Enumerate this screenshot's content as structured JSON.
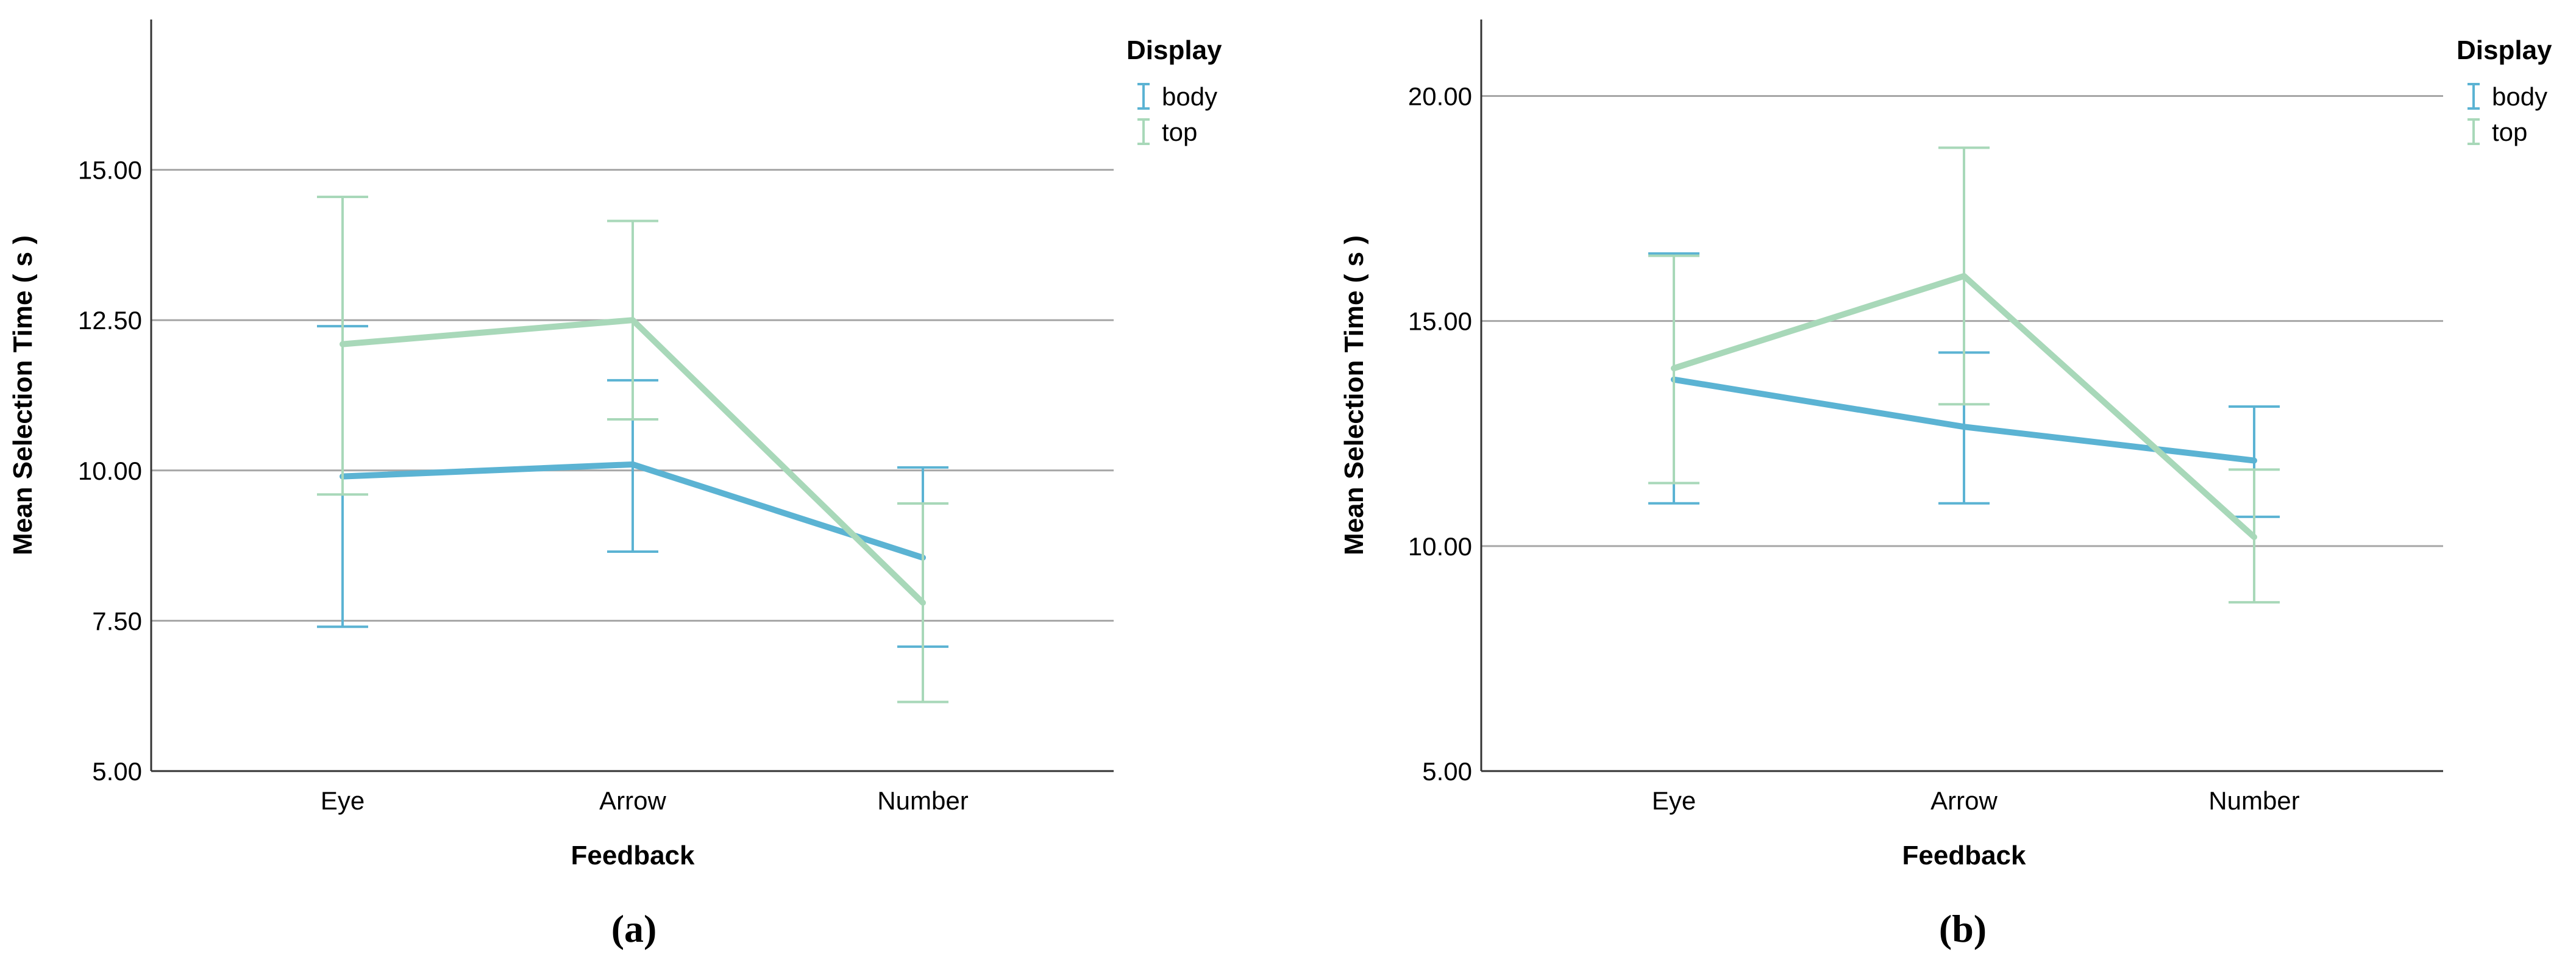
{
  "chart_data": [
    {
      "panel_label": "(a)",
      "panel_letter": "a",
      "type": "line",
      "xlabel": "Feedback",
      "ylabel": "Mean Selection Time ( s )",
      "categories": [
        "Eye",
        "Arrow",
        "Number"
      ],
      "ylim": [
        5,
        17.5
      ],
      "yticks": [
        5,
        7.5,
        10,
        12.5,
        15
      ],
      "ytick_labels": [
        "5.00",
        "7.50",
        "10.00",
        "12.50",
        "15.00"
      ],
      "grid": true,
      "legend": {
        "title": "Display",
        "position": "top-right"
      },
      "series": [
        {
          "name": "body",
          "color": "#5bb3d3",
          "values": [
            9.9,
            10.1,
            8.55
          ],
          "lower": [
            7.4,
            8.65,
            7.07
          ],
          "upper": [
            12.4,
            11.5,
            10.05
          ]
        },
        {
          "name": "top",
          "color": "#a8d8b9",
          "values": [
            12.1,
            12.5,
            7.8
          ],
          "lower": [
            9.6,
            10.85,
            6.15
          ],
          "upper": [
            14.55,
            14.15,
            9.45
          ]
        }
      ]
    },
    {
      "panel_label": "(b)",
      "panel_letter": "b",
      "type": "line",
      "xlabel": "Feedback",
      "ylabel": "Mean Selection Time ( s )",
      "categories": [
        "Eye",
        "Arrow",
        "Number"
      ],
      "ylim": [
        5,
        21.7
      ],
      "yticks": [
        5,
        10,
        15,
        20
      ],
      "ytick_labels": [
        "5.00",
        "10.00",
        "15.00",
        "20.00"
      ],
      "grid": true,
      "legend": {
        "title": "Display",
        "position": "top-right"
      },
      "series": [
        {
          "name": "body",
          "color": "#5bb3d3",
          "values": [
            13.7,
            12.65,
            11.9
          ],
          "lower": [
            10.95,
            10.95,
            10.65
          ],
          "upper": [
            16.5,
            14.3,
            13.1
          ]
        },
        {
          "name": "top",
          "color": "#a8d8b9",
          "values": [
            13.95,
            16.0,
            10.2
          ],
          "lower": [
            11.4,
            13.15,
            8.75
          ],
          "upper": [
            16.45,
            18.85,
            11.7
          ]
        }
      ]
    }
  ]
}
